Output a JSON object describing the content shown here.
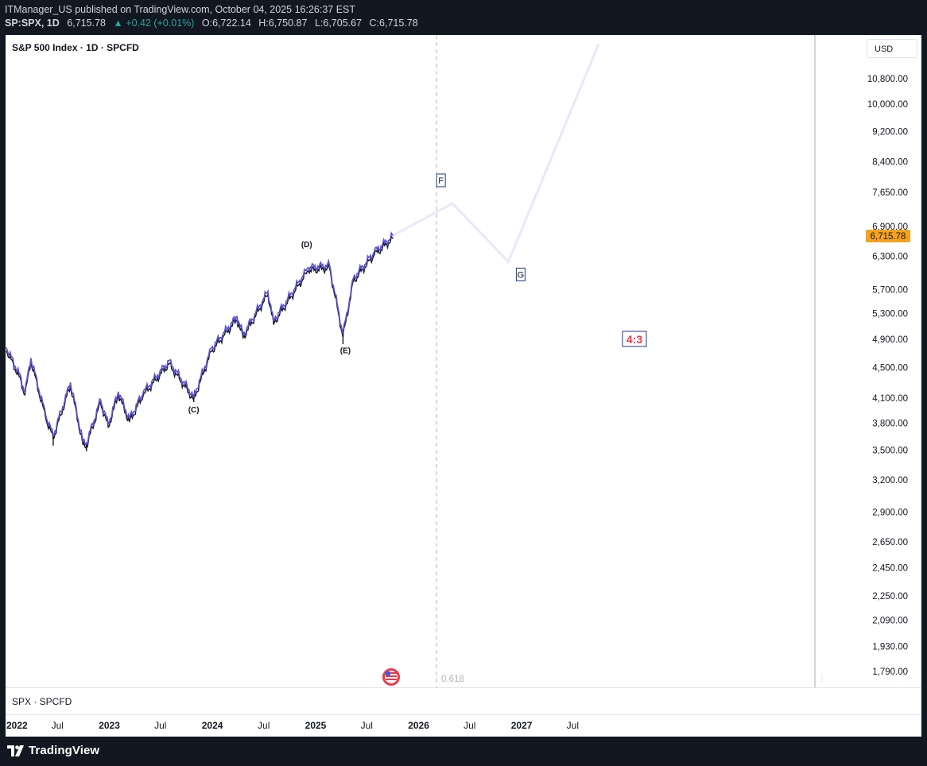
{
  "header": {
    "publisher_line": "ITManager_US published on TradingView.com, October 04, 2025 16:26:37 EST",
    "symbol": "SP:SPX, 1D",
    "last": "6,715.78",
    "change": "▲ +0.42 (+0.01%)",
    "open_label": "O:",
    "open": "6,722.14",
    "high_label": "H:",
    "high": "6,750.87",
    "low_label": "L:",
    "low": "6,705.67",
    "close_label": "C:",
    "close": "6,715.78"
  },
  "chart": {
    "title": "S&P 500 Index · 1D · SPCFD",
    "currency_button": "USD",
    "price_badge": "6,715.78",
    "fib_label": "0.618",
    "ratio_label": "4:3",
    "lower_pane_label": "SPX · SPCFD",
    "colors": {
      "price_line": "#5b4fd6",
      "candles": "#131722",
      "projection": "#e9e8fb",
      "badge": "#f7a21b",
      "ratio": "#f23645",
      "box": "#1e3a8a"
    }
  },
  "chart_data": {
    "type": "line",
    "y_scale": "log",
    "y_ticks": [
      "10,800.00",
      "10,000.00",
      "9,200.00",
      "8,400.00",
      "7,650.00",
      "6,900.00",
      "6,300.00",
      "5,700.00",
      "5,300.00",
      "4,900.00",
      "4,500.00",
      "4,100.00",
      "3,800.00",
      "3,500.00",
      "3,200.00",
      "2,900.00",
      "2,650.00",
      "2,450.00",
      "2,250.00",
      "2,090.00",
      "1,930.00",
      "1,790.00"
    ],
    "x_ticks": [
      "2022",
      "Jul",
      "2023",
      "Jul",
      "2024",
      "Jul",
      "2025",
      "Jul",
      "2026",
      "Jul",
      "2027",
      "Jul"
    ],
    "series": [
      {
        "values": [
          [
            "2022-01-01",
            4780
          ],
          [
            "2022-02-15",
            4420
          ],
          [
            "2022-03-08",
            4180
          ],
          [
            "2022-03-29",
            4630
          ],
          [
            "2022-05-20",
            3900
          ],
          [
            "2022-06-16",
            3660
          ],
          [
            "2022-08-16",
            4300
          ],
          [
            "2022-09-30",
            3590
          ],
          [
            "2022-10-12",
            3580
          ],
          [
            "2022-12-01",
            4080
          ],
          [
            "2022-12-28",
            3790
          ],
          [
            "2023-02-02",
            4180
          ],
          [
            "2023-03-13",
            3850
          ],
          [
            "2023-05-01",
            4170
          ],
          [
            "2023-07-31",
            4590
          ],
          [
            "2023-10-27",
            4120
          ],
          [
            "2023-12-29",
            4770
          ],
          [
            "2024-03-28",
            5250
          ],
          [
            "2024-04-19",
            4970
          ],
          [
            "2024-07-16",
            5670
          ],
          [
            "2024-08-05",
            5190
          ],
          [
            "2024-12-06",
            6090
          ],
          [
            "2025-02-19",
            6140
          ],
          [
            "2025-04-08",
            4980
          ],
          [
            "2025-05-15",
            5900
          ],
          [
            "2025-07-28",
            6390
          ],
          [
            "2025-10-03",
            6715
          ]
        ]
      }
    ],
    "projection": [
      [
        "2025-10-03",
        6715
      ],
      [
        "2026-05-01",
        7400
      ],
      [
        "2026-11-15",
        6200
      ],
      [
        "2027-10-01",
        12000
      ]
    ],
    "wave_labels": [
      {
        "label": "(C)",
        "date": "2023-10-27"
      },
      {
        "label": "(D)",
        "date": "2024-12-06"
      },
      {
        "label": "(E)",
        "date": "2025-04-08"
      },
      {
        "label": "F",
        "date": "2026-05-01"
      },
      {
        "label": "G",
        "date": "2026-11-15"
      }
    ],
    "last_price": 6715.78,
    "currency": "USD"
  }
}
